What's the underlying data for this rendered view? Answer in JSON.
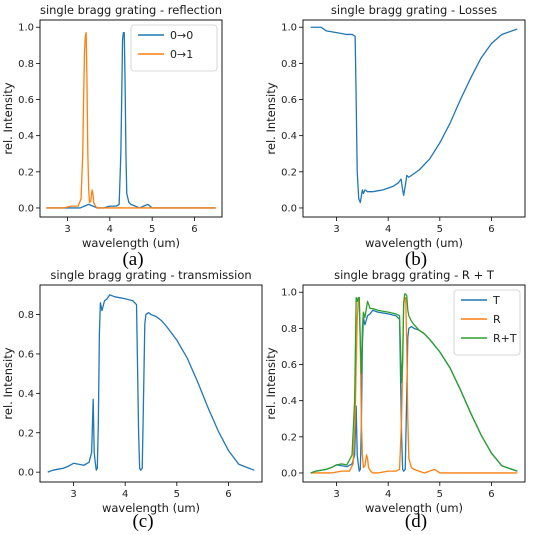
{
  "chart_data": [
    {
      "type": "line",
      "panel_label": "(a)",
      "title": "single bragg grating - reflection",
      "xlabel": "wavelength (um)",
      "ylabel": "rel. Intensity",
      "xlim": [
        2.35,
        6.65
      ],
      "ylim": [
        -0.05,
        1.04
      ],
      "xticks": [
        3,
        4,
        5,
        6
      ],
      "yticks": [
        0.0,
        0.2,
        0.4,
        0.6,
        0.8,
        1.0
      ],
      "ytick_labels": [
        "0.0",
        "0.2",
        "0.4",
        "0.6",
        "0.8",
        "1.0"
      ],
      "legend": "top-right",
      "series": [
        {
          "name": "0→0",
          "color": "#1f77b4",
          "x": [
            2.5,
            3.0,
            3.3,
            3.4,
            3.5,
            3.6,
            3.7,
            3.85,
            4.0,
            4.15,
            4.22,
            4.26,
            4.28,
            4.3,
            4.32,
            4.34,
            4.36,
            4.38,
            4.4,
            4.45,
            4.5,
            4.7,
            4.8,
            4.9,
            5.0,
            5.2,
            5.5,
            6.0,
            6.5
          ],
          "y": [
            0.0,
            0.0,
            0.0,
            0.01,
            0.02,
            0.01,
            0.0,
            0.0,
            0.01,
            0.01,
            0.02,
            0.3,
            0.6,
            0.93,
            0.97,
            0.97,
            0.7,
            0.3,
            0.08,
            0.03,
            0.02,
            0.0,
            0.01,
            0.02,
            0.0,
            0.0,
            0.0,
            0.0,
            0.0
          ]
        },
        {
          "name": "0→1",
          "color": "#ff7f0e",
          "x": [
            2.5,
            2.9,
            3.1,
            3.25,
            3.32,
            3.36,
            3.38,
            3.4,
            3.42,
            3.44,
            3.46,
            3.48,
            3.5,
            3.52,
            3.55,
            3.58,
            3.6,
            3.62,
            3.66,
            3.7,
            3.8,
            4.0,
            4.5,
            5.0,
            5.5,
            6.0,
            6.5
          ],
          "y": [
            0.0,
            0.0,
            0.01,
            0.01,
            0.05,
            0.3,
            0.6,
            0.85,
            0.95,
            0.97,
            0.7,
            0.3,
            0.1,
            0.03,
            0.04,
            0.1,
            0.08,
            0.03,
            0.01,
            0.0,
            0.0,
            0.0,
            0.0,
            0.0,
            0.0,
            0.0,
            0.0
          ]
        }
      ]
    },
    {
      "type": "line",
      "panel_label": "(b)",
      "title": "single bragg grating - Losses",
      "xlabel": "wavelength (um)",
      "ylabel": "rel. Intensity",
      "xlim": [
        2.35,
        6.65
      ],
      "ylim": [
        -0.05,
        1.04
      ],
      "xticks": [
        3,
        4,
        5,
        6
      ],
      "yticks": [
        0.0,
        0.2,
        0.4,
        0.6,
        0.8,
        1.0
      ],
      "ytick_labels": [
        "0.0",
        "0.2",
        "0.4",
        "0.6",
        "0.8",
        "1.0"
      ],
      "series": [
        {
          "name": "",
          "color": "#1f77b4",
          "x": [
            2.5,
            2.7,
            2.8,
            3.0,
            3.2,
            3.3,
            3.36,
            3.38,
            3.4,
            3.43,
            3.46,
            3.5,
            3.52,
            3.55,
            3.6,
            3.7,
            3.9,
            4.1,
            4.2,
            4.25,
            4.28,
            4.3,
            4.33,
            4.36,
            4.4,
            4.5,
            4.6,
            4.8,
            5.0,
            5.2,
            5.4,
            5.6,
            5.8,
            6.0,
            6.2,
            6.5
          ],
          "y": [
            1.0,
            1.0,
            0.98,
            0.97,
            0.96,
            0.96,
            0.95,
            0.6,
            0.2,
            0.05,
            0.03,
            0.1,
            0.08,
            0.1,
            0.09,
            0.09,
            0.1,
            0.12,
            0.14,
            0.16,
            0.1,
            0.07,
            0.12,
            0.18,
            0.17,
            0.19,
            0.21,
            0.27,
            0.36,
            0.47,
            0.6,
            0.72,
            0.83,
            0.91,
            0.96,
            0.99
          ]
        }
      ]
    },
    {
      "type": "line",
      "panel_label": "(c)",
      "title": "single bragg grating - transmission",
      "xlabel": "wavelength (um)",
      "ylabel": "rel. Intensity",
      "xlim": [
        2.35,
        6.65
      ],
      "ylim": [
        -0.05,
        0.95
      ],
      "xticks": [
        3,
        4,
        5,
        6
      ],
      "yticks": [
        0.0,
        0.2,
        0.4,
        0.6,
        0.8
      ],
      "ytick_labels": [
        "0.0",
        "0.2",
        "0.4",
        "0.6",
        "0.8"
      ],
      "series": [
        {
          "name": "",
          "color": "#1f77b4",
          "x": [
            2.5,
            2.6,
            2.7,
            2.8,
            2.9,
            3.0,
            3.1,
            3.2,
            3.3,
            3.35,
            3.38,
            3.4,
            3.42,
            3.44,
            3.46,
            3.48,
            3.5,
            3.52,
            3.55,
            3.6,
            3.65,
            3.7,
            3.8,
            4.0,
            4.15,
            4.22,
            4.26,
            4.28,
            4.3,
            4.33,
            4.35,
            4.38,
            4.4,
            4.45,
            4.5,
            4.6,
            4.7,
            4.8,
            5.0,
            5.2,
            5.4,
            5.6,
            5.8,
            6.0,
            6.2,
            6.4,
            6.5
          ],
          "y": [
            0.0,
            0.01,
            0.015,
            0.02,
            0.03,
            0.045,
            0.04,
            0.035,
            0.05,
            0.1,
            0.37,
            0.1,
            0.05,
            0.01,
            0.02,
            0.25,
            0.7,
            0.86,
            0.82,
            0.87,
            0.88,
            0.9,
            0.89,
            0.88,
            0.87,
            0.85,
            0.2,
            0.02,
            0.01,
            0.02,
            0.3,
            0.75,
            0.8,
            0.81,
            0.8,
            0.79,
            0.77,
            0.74,
            0.67,
            0.58,
            0.46,
            0.33,
            0.21,
            0.11,
            0.04,
            0.02,
            0.01
          ]
        }
      ]
    },
    {
      "type": "line",
      "panel_label": "(d)",
      "title": "single bragg grating - R + T",
      "xlabel": "wavelength (um)",
      "ylabel": "rel. Intensity",
      "xlim": [
        2.35,
        6.65
      ],
      "ylim": [
        -0.05,
        1.04
      ],
      "xticks": [
        3,
        4,
        5,
        6
      ],
      "yticks": [
        0.0,
        0.2,
        0.4,
        0.6,
        0.8,
        1.0
      ],
      "ytick_labels": [
        "0.0",
        "0.2",
        "0.4",
        "0.6",
        "0.8",
        "1.0"
      ],
      "legend": "top-right",
      "series": [
        {
          "name": "T",
          "color": "#1f77b4",
          "x": [
            2.5,
            2.6,
            2.7,
            2.8,
            2.9,
            3.0,
            3.1,
            3.2,
            3.3,
            3.35,
            3.38,
            3.4,
            3.42,
            3.44,
            3.46,
            3.48,
            3.5,
            3.52,
            3.55,
            3.6,
            3.65,
            3.7,
            3.8,
            4.0,
            4.15,
            4.22,
            4.26,
            4.28,
            4.3,
            4.33,
            4.35,
            4.38,
            4.4,
            4.45,
            4.5,
            4.6,
            4.7,
            4.8,
            5.0,
            5.2,
            5.4,
            5.6,
            5.8,
            6.0,
            6.2,
            6.4,
            6.5
          ],
          "y": [
            0.0,
            0.01,
            0.015,
            0.02,
            0.03,
            0.045,
            0.04,
            0.035,
            0.05,
            0.1,
            0.37,
            0.1,
            0.05,
            0.01,
            0.02,
            0.25,
            0.7,
            0.86,
            0.82,
            0.87,
            0.88,
            0.9,
            0.89,
            0.88,
            0.87,
            0.85,
            0.2,
            0.02,
            0.01,
            0.02,
            0.3,
            0.75,
            0.8,
            0.81,
            0.8,
            0.79,
            0.77,
            0.74,
            0.67,
            0.58,
            0.46,
            0.33,
            0.21,
            0.11,
            0.04,
            0.02,
            0.01
          ]
        },
        {
          "name": "R",
          "color": "#ff7f0e",
          "x": [
            2.5,
            2.9,
            3.1,
            3.25,
            3.32,
            3.36,
            3.38,
            3.4,
            3.42,
            3.44,
            3.46,
            3.48,
            3.5,
            3.52,
            3.55,
            3.58,
            3.6,
            3.62,
            3.66,
            3.7,
            3.8,
            4.0,
            4.15,
            4.22,
            4.26,
            4.28,
            4.3,
            4.32,
            4.34,
            4.36,
            4.38,
            4.4,
            4.45,
            4.5,
            4.7,
            4.9,
            5.0,
            5.5,
            6.0,
            6.5
          ],
          "y": [
            0.0,
            0.0,
            0.01,
            0.01,
            0.05,
            0.3,
            0.6,
            0.85,
            0.95,
            0.97,
            0.7,
            0.3,
            0.1,
            0.03,
            0.04,
            0.1,
            0.08,
            0.03,
            0.01,
            0.0,
            0.0,
            0.01,
            0.01,
            0.02,
            0.3,
            0.6,
            0.93,
            0.97,
            0.97,
            0.7,
            0.3,
            0.08,
            0.03,
            0.02,
            0.0,
            0.02,
            0.0,
            0.0,
            0.0,
            0.0
          ]
        },
        {
          "name": "R+T",
          "color": "#2ca02c",
          "x": [
            2.5,
            2.6,
            2.7,
            2.8,
            2.9,
            3.0,
            3.1,
            3.2,
            3.3,
            3.35,
            3.38,
            3.4,
            3.42,
            3.44,
            3.46,
            3.48,
            3.5,
            3.52,
            3.55,
            3.6,
            3.65,
            3.7,
            3.8,
            4.0,
            4.15,
            4.22,
            4.26,
            4.28,
            4.3,
            4.32,
            4.34,
            4.36,
            4.38,
            4.4,
            4.45,
            4.5,
            4.6,
            4.7,
            4.8,
            5.0,
            5.2,
            5.4,
            5.6,
            5.8,
            6.0,
            6.2,
            6.4,
            6.5
          ],
          "y": [
            0.0,
            0.01,
            0.015,
            0.02,
            0.03,
            0.045,
            0.05,
            0.045,
            0.1,
            0.4,
            0.97,
            0.95,
            0.97,
            0.97,
            0.72,
            0.55,
            0.8,
            0.89,
            0.86,
            0.95,
            0.91,
            0.91,
            0.9,
            0.89,
            0.88,
            0.87,
            0.5,
            0.62,
            0.94,
            0.99,
            0.99,
            0.98,
            0.9,
            0.87,
            0.84,
            0.82,
            0.79,
            0.77,
            0.74,
            0.67,
            0.58,
            0.46,
            0.33,
            0.21,
            0.11,
            0.04,
            0.02,
            0.01
          ]
        }
      ]
    }
  ]
}
